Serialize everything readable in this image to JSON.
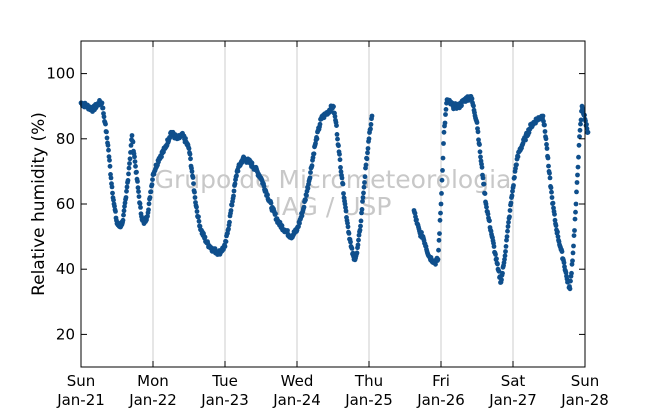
{
  "chart_data": {
    "type": "scatter",
    "title": "",
    "xlabel": "",
    "ylabel": "Relative humidity (%)",
    "ylim": [
      10,
      110
    ],
    "xlim": [
      "2021-01-21",
      "2021-01-28"
    ],
    "grid": "vertical",
    "yticks": [
      20,
      40,
      60,
      80,
      100
    ],
    "xticks": [
      {
        "day": "Sun",
        "date": "Jan-21"
      },
      {
        "day": "Mon",
        "date": "Jan-22"
      },
      {
        "day": "Tue",
        "date": "Jan-23"
      },
      {
        "day": "Wed",
        "date": "Jan-24"
      },
      {
        "day": "Thu",
        "date": "Jan-25"
      },
      {
        "day": "Fri",
        "date": "Jan-26"
      },
      {
        "day": "Sat",
        "date": "Jan-27"
      },
      {
        "day": "Sun",
        "date": "Jan-28"
      }
    ],
    "watermark": [
      "Grupo de Micrometeorologia",
      "IAG / USP"
    ],
    "marker_color": "#0f4f8c",
    "series": [
      {
        "values": [
          [
            "2021-01-21 00:00",
            91
          ],
          [
            "2021-01-21 02:00",
            90
          ],
          [
            "2021-01-21 04:00",
            89
          ],
          [
            "2021-01-21 06:00",
            91
          ],
          [
            "2021-01-21 07:00",
            91
          ],
          [
            "2021-01-21 08:00",
            85
          ],
          [
            "2021-01-21 09:00",
            78
          ],
          [
            "2021-01-21 10:00",
            68
          ],
          [
            "2021-01-21 11:00",
            60
          ],
          [
            "2021-01-21 12:00",
            54
          ],
          [
            "2021-01-21 13:00",
            53
          ],
          [
            "2021-01-21 14:00",
            55
          ],
          [
            "2021-01-21 15:00",
            62
          ],
          [
            "2021-01-21 16:00",
            71
          ],
          [
            "2021-01-21 17:00",
            81
          ],
          [
            "2021-01-21 18:00",
            73
          ],
          [
            "2021-01-21 19:00",
            65
          ],
          [
            "2021-01-21 20:00",
            57
          ],
          [
            "2021-01-21 21:00",
            54
          ],
          [
            "2021-01-21 22:00",
            56
          ],
          [
            "2021-01-21 23:00",
            62
          ],
          [
            "2021-01-22 00:00",
            69
          ],
          [
            "2021-01-22 02:00",
            74
          ],
          [
            "2021-01-22 04:00",
            77
          ],
          [
            "2021-01-22 06:00",
            82
          ],
          [
            "2021-01-22 08:00",
            80
          ],
          [
            "2021-01-22 10:00",
            81
          ],
          [
            "2021-01-22 12:00",
            77
          ],
          [
            "2021-01-22 13:00",
            70
          ],
          [
            "2021-01-22 14:00",
            62
          ],
          [
            "2021-01-22 15:00",
            56
          ],
          [
            "2021-01-22 16:00",
            52
          ],
          [
            "2021-01-22 18:00",
            48
          ],
          [
            "2021-01-22 20:00",
            46
          ],
          [
            "2021-01-22 22:00",
            45
          ],
          [
            "2021-01-23 00:00",
            47
          ],
          [
            "2021-01-23 01:00",
            52
          ],
          [
            "2021-01-23 02:00",
            58
          ],
          [
            "2021-01-23 03:00",
            64
          ],
          [
            "2021-01-23 04:00",
            70
          ],
          [
            "2021-01-23 06:00",
            74
          ],
          [
            "2021-01-23 08:00",
            73
          ],
          [
            "2021-01-23 10:00",
            71
          ],
          [
            "2021-01-23 12:00",
            68
          ],
          [
            "2021-01-23 14:00",
            63
          ],
          [
            "2021-01-23 16:00",
            58
          ],
          [
            "2021-01-23 18:00",
            54
          ],
          [
            "2021-01-23 20:00",
            52
          ],
          [
            "2021-01-23 22:00",
            50
          ],
          [
            "2021-01-24 00:00",
            52
          ],
          [
            "2021-01-24 02:00",
            58
          ],
          [
            "2021-01-24 04:00",
            67
          ],
          [
            "2021-01-24 06:00",
            78
          ],
          [
            "2021-01-24 08:00",
            86
          ],
          [
            "2021-01-24 10:00",
            88
          ],
          [
            "2021-01-24 12:00",
            90
          ],
          [
            "2021-01-24 13:00",
            85
          ],
          [
            "2021-01-24 14:00",
            76
          ],
          [
            "2021-01-24 15:00",
            68
          ],
          [
            "2021-01-24 16:00",
            60
          ],
          [
            "2021-01-24 17:00",
            53
          ],
          [
            "2021-01-24 18:00",
            47
          ],
          [
            "2021-01-24 19:00",
            43
          ],
          [
            "2021-01-24 20:00",
            45
          ],
          [
            "2021-01-24 21:00",
            52
          ],
          [
            "2021-01-24 22:00",
            62
          ],
          [
            "2021-01-24 23:00",
            72
          ],
          [
            "2021-01-25 00:00",
            80
          ],
          [
            "2021-01-25 01:00",
            87
          ],
          [
            "2021-01-25 15:00",
            58
          ],
          [
            "2021-01-25 16:00",
            54
          ],
          [
            "2021-01-25 17:00",
            51
          ],
          [
            "2021-01-25 18:00",
            50
          ],
          [
            "2021-01-25 19:00",
            47
          ],
          [
            "2021-01-25 20:00",
            44
          ],
          [
            "2021-01-25 22:00",
            42
          ],
          [
            "2021-01-25 23:00",
            43
          ],
          [
            "2021-01-26 00:00",
            60
          ],
          [
            "2021-01-26 01:00",
            82
          ],
          [
            "2021-01-26 02:00",
            92
          ],
          [
            "2021-01-26 04:00",
            90
          ],
          [
            "2021-01-26 06:00",
            90
          ],
          [
            "2021-01-26 08:00",
            92
          ],
          [
            "2021-01-26 10:00",
            93
          ],
          [
            "2021-01-26 12:00",
            85
          ],
          [
            "2021-01-26 13:00",
            76
          ],
          [
            "2021-01-26 14:00",
            68
          ],
          [
            "2021-01-26 15:00",
            60
          ],
          [
            "2021-01-26 16:00",
            55
          ],
          [
            "2021-01-26 17:00",
            50
          ],
          [
            "2021-01-26 18:00",
            45
          ],
          [
            "2021-01-26 19:00",
            40
          ],
          [
            "2021-01-26 20:00",
            36
          ],
          [
            "2021-01-26 21:00",
            42
          ],
          [
            "2021-01-26 22:00",
            50
          ],
          [
            "2021-01-26 23:00",
            58
          ],
          [
            "2021-01-27 00:00",
            65
          ],
          [
            "2021-01-27 01:00",
            72
          ],
          [
            "2021-01-27 02:00",
            76
          ],
          [
            "2021-01-27 04:00",
            80
          ],
          [
            "2021-01-27 06:00",
            84
          ],
          [
            "2021-01-27 08:00",
            86
          ],
          [
            "2021-01-27 10:00",
            87
          ],
          [
            "2021-01-27 11:00",
            80
          ],
          [
            "2021-01-27 12:00",
            70
          ],
          [
            "2021-01-27 13:00",
            62
          ],
          [
            "2021-01-27 14:00",
            55
          ],
          [
            "2021-01-27 15:00",
            50
          ],
          [
            "2021-01-27 16:00",
            46
          ],
          [
            "2021-01-27 17:00",
            42
          ],
          [
            "2021-01-27 18:00",
            37
          ],
          [
            "2021-01-27 19:00",
            34
          ],
          [
            "2021-01-27 20:00",
            45
          ],
          [
            "2021-01-27 21:00",
            60
          ],
          [
            "2021-01-27 22:00",
            78
          ],
          [
            "2021-01-27 23:00",
            90
          ],
          [
            "2021-01-28 00:00",
            86
          ],
          [
            "2021-01-28 01:00",
            82
          ]
        ]
      }
    ]
  }
}
